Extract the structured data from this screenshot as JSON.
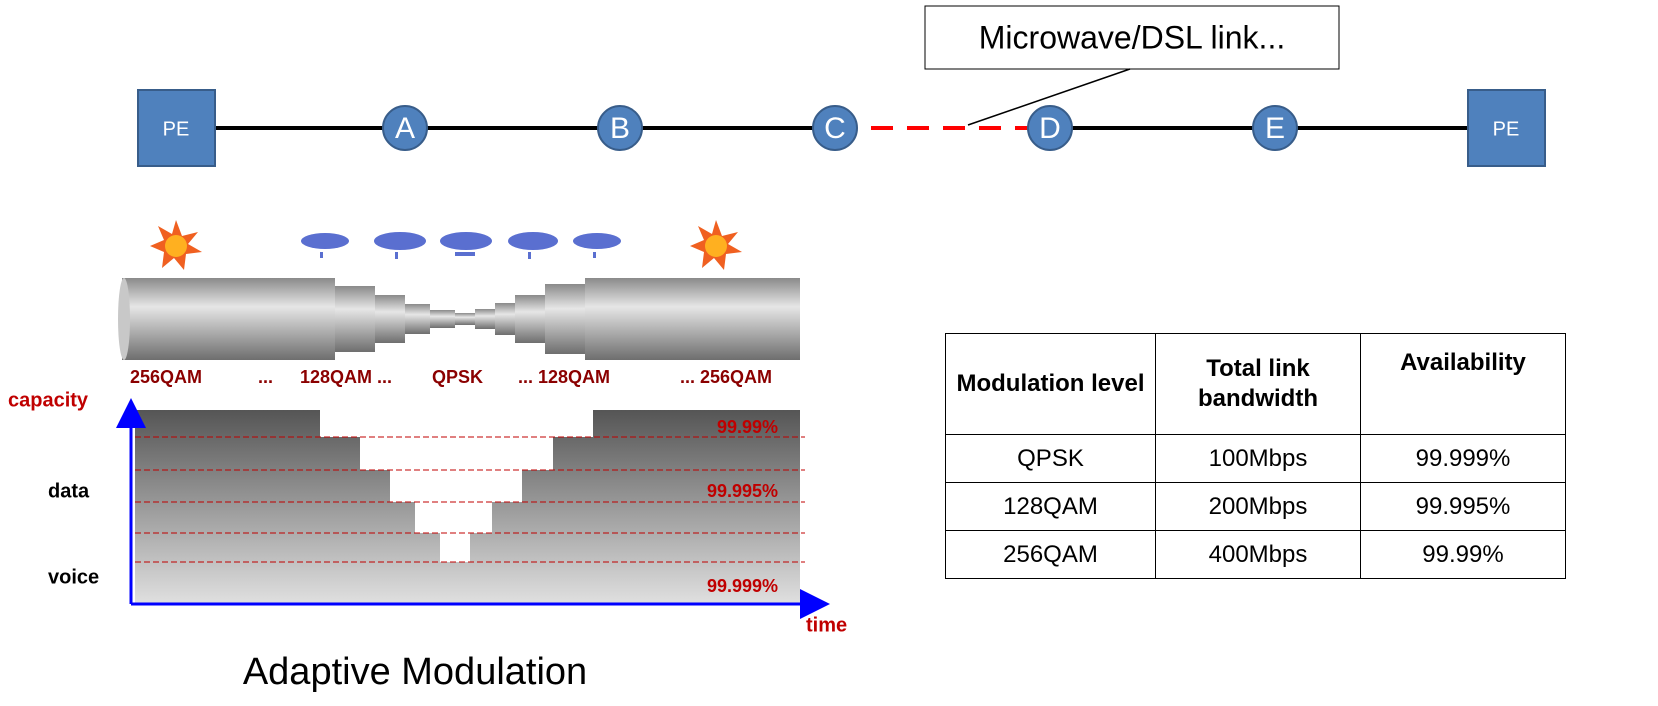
{
  "callout": "Microwave/DSL link...",
  "nodes": [
    {
      "label": "PE"
    },
    {
      "label": "A"
    },
    {
      "label": "B"
    },
    {
      "label": "C"
    },
    {
      "label": "D"
    },
    {
      "label": "E"
    },
    {
      "label": "PE"
    }
  ],
  "modulation_labels": [
    "256QAM",
    "...",
    "128QAM ...",
    "QPSK",
    "... 128QAM",
    "... 256QAM"
  ],
  "chart": {
    "y_axis_label": "capacity",
    "x_axis_label": "time",
    "levels": [
      "data",
      "voice"
    ],
    "availability_labels": [
      "99.99%",
      "99.995%",
      "99.999%"
    ]
  },
  "caption": "Adaptive Modulation",
  "table": {
    "header": [
      "Modulation level",
      "Total link bandwidth",
      "Availability"
    ],
    "rows": [
      [
        "QPSK",
        "100Mbps",
        "99.999%"
      ],
      [
        "128QAM",
        "200Mbps",
        "99.995%"
      ],
      [
        "256QAM",
        "400Mbps",
        "99.99%"
      ]
    ]
  }
}
